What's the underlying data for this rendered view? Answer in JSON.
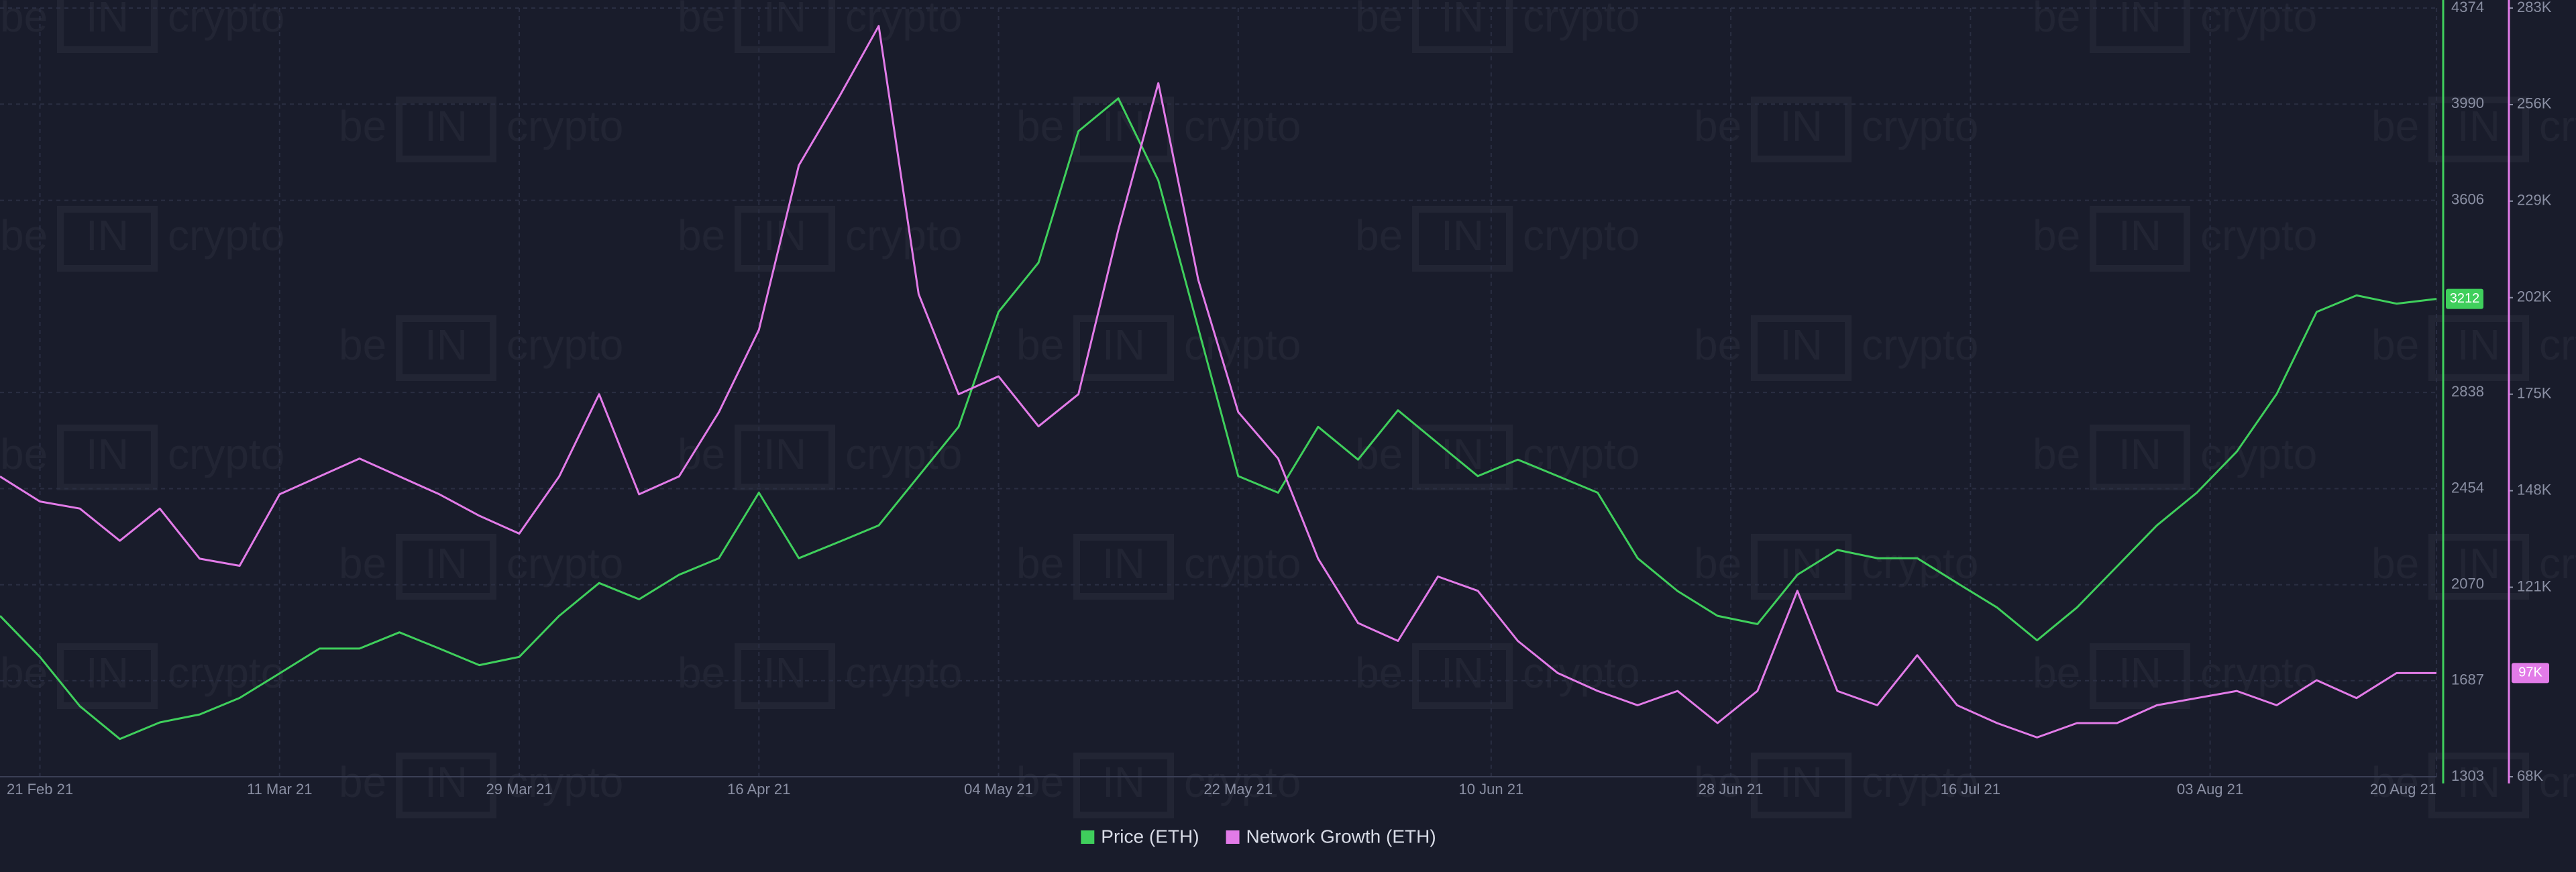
{
  "chart_data": {
    "type": "line",
    "watermark": {
      "prefix": "be",
      "mark": "IN",
      "suffix": "crypto"
    },
    "x": [
      "2021-02-18",
      "2021-02-21",
      "2021-02-24",
      "2021-02-27",
      "2021-03-02",
      "2021-03-05",
      "2021-03-08",
      "2021-03-11",
      "2021-03-14",
      "2021-03-17",
      "2021-03-20",
      "2021-03-23",
      "2021-03-26",
      "2021-03-29",
      "2021-04-01",
      "2021-04-04",
      "2021-04-07",
      "2021-04-10",
      "2021-04-13",
      "2021-04-16",
      "2021-04-19",
      "2021-04-22",
      "2021-04-25",
      "2021-04-28",
      "2021-05-01",
      "2021-05-04",
      "2021-05-07",
      "2021-05-10",
      "2021-05-13",
      "2021-05-16",
      "2021-05-19",
      "2021-05-22",
      "2021-05-25",
      "2021-05-28",
      "2021-05-31",
      "2021-06-03",
      "2021-06-06",
      "2021-06-09",
      "2021-06-12",
      "2021-06-15",
      "2021-06-18",
      "2021-06-21",
      "2021-06-24",
      "2021-06-27",
      "2021-06-30",
      "2021-07-03",
      "2021-07-06",
      "2021-07-09",
      "2021-07-12",
      "2021-07-15",
      "2021-07-18",
      "2021-07-21",
      "2021-07-24",
      "2021-07-27",
      "2021-07-30",
      "2021-08-02",
      "2021-08-05",
      "2021-08-08",
      "2021-08-11",
      "2021-08-14",
      "2021-08-17",
      "2021-08-20"
    ],
    "xlim": [
      "2021-02-18",
      "2021-08-20"
    ],
    "xticks": [
      {
        "value": "2021-02-21",
        "label": "21 Feb 21"
      },
      {
        "value": "2021-03-11",
        "label": "11 Mar 21"
      },
      {
        "value": "2021-03-29",
        "label": "29 Mar 21"
      },
      {
        "value": "2021-04-16",
        "label": "16 Apr 21"
      },
      {
        "value": "2021-05-04",
        "label": "04 May 21"
      },
      {
        "value": "2021-05-22",
        "label": "22 May 21"
      },
      {
        "value": "2021-06-10",
        "label": "10 Jun 21"
      },
      {
        "value": "2021-06-28",
        "label": "28 Jun 21"
      },
      {
        "value": "2021-07-16",
        "label": "16 Jul 21"
      },
      {
        "value": "2021-08-03",
        "label": "03 Aug 21"
      },
      {
        "value": "2021-08-20",
        "label": "20 Aug 21"
      }
    ],
    "ylim": [
      1303,
      4374
    ],
    "yticks": [
      1303,
      1687,
      2070,
      2454,
      2838,
      3606,
      3990,
      4374
    ],
    "y2lim": [
      68,
      283
    ],
    "y2ticks": [
      {
        "value": 68,
        "label": "68K"
      },
      {
        "value": 121,
        "label": "121K"
      },
      {
        "value": 148,
        "label": "148K"
      },
      {
        "value": 175,
        "label": "175K"
      },
      {
        "value": 202,
        "label": "202K"
      },
      {
        "value": 229,
        "label": "229K"
      },
      {
        "value": 256,
        "label": "256K"
      },
      {
        "value": 283,
        "label": "283K"
      }
    ],
    "grid": true,
    "legend": "bottom",
    "series": [
      {
        "name": "Price (ETH)",
        "color": "#3fcf5c",
        "axis": "y",
        "values": [
          1946,
          1782,
          1585,
          1454,
          1520,
          1552,
          1618,
          1716,
          1815,
          1815,
          1880,
          1815,
          1749,
          1782,
          1946,
          2077,
          2012,
          2110,
          2176,
          2438,
          2176,
          2241,
          2307,
          2504,
          2701,
          3160,
          3357,
          3882,
          4013,
          3685,
          3095,
          2504,
          2438,
          2701,
          2570,
          2767,
          2635,
          2504,
          2570,
          2504,
          2438,
          2176,
          2045,
          1946,
          1913,
          2110,
          2209,
          2176,
          2176,
          2077,
          1979,
          1848,
          1979,
          2143,
          2307,
          2438,
          2602,
          2832,
          3160,
          3226,
          3193,
          3212
        ]
      },
      {
        "name": "Network Growth (ETH)",
        "color": "#e27be8",
        "axis": "y2",
        "values": [
          152,
          145,
          143,
          134,
          143,
          129,
          127,
          147,
          152,
          157,
          152,
          147,
          141,
          136,
          152,
          175,
          147,
          152,
          170,
          193,
          239,
          258,
          278,
          203,
          175,
          180,
          166,
          175,
          221,
          262,
          207,
          170,
          157,
          129,
          111,
          106,
          124,
          120,
          106,
          97,
          92,
          88,
          92,
          83,
          92,
          120,
          92,
          88,
          102,
          88,
          83,
          79,
          83,
          83,
          88,
          90,
          92,
          88,
          95,
          90,
          97,
          97
        ],
        "value_labels": [
          null,
          null,
          null,
          null,
          null,
          null,
          null,
          null,
          null,
          null,
          null,
          null,
          null,
          null,
          null,
          null,
          null,
          null,
          null,
          null,
          null,
          null,
          null,
          null,
          null,
          null,
          null,
          null,
          null,
          null,
          null,
          null,
          null,
          null,
          null,
          null,
          null,
          null,
          null,
          null,
          null,
          null,
          null,
          null,
          null,
          null,
          null,
          null,
          null,
          null,
          null,
          null,
          null,
          null,
          null,
          null,
          null,
          null,
          null,
          null,
          null,
          "97K"
        ]
      }
    ]
  }
}
